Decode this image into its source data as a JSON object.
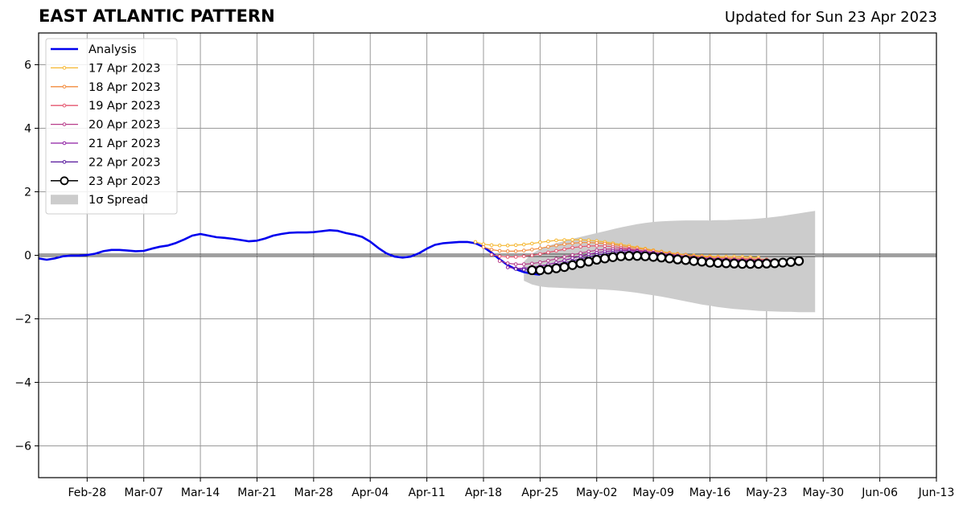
{
  "header": {
    "title": "EAST ATLANTIC PATTERN",
    "updated": "Updated for Sun 23 Apr 2023"
  },
  "chart_data": {
    "type": "line",
    "title": "EAST ATLANTIC PATTERN",
    "subtitle": "Updated for Sun 23 Apr 2023",
    "xlabel": "",
    "ylabel": "",
    "x_start": "2023-02-22",
    "x_end": "2023-06-13",
    "ylim": [
      -7,
      7
    ],
    "xticks": [
      {
        "date": "2023-02-28",
        "label": "Feb-28"
      },
      {
        "date": "2023-03-07",
        "label": "Mar-07"
      },
      {
        "date": "2023-03-14",
        "label": "Mar-14"
      },
      {
        "date": "2023-03-21",
        "label": "Mar-21"
      },
      {
        "date": "2023-03-28",
        "label": "Mar-28"
      },
      {
        "date": "2023-04-04",
        "label": "Apr-04"
      },
      {
        "date": "2023-04-11",
        "label": "Apr-11"
      },
      {
        "date": "2023-04-18",
        "label": "Apr-18"
      },
      {
        "date": "2023-04-25",
        "label": "Apr-25"
      },
      {
        "date": "2023-05-02",
        "label": "May-02"
      },
      {
        "date": "2023-05-09",
        "label": "May-09"
      },
      {
        "date": "2023-05-16",
        "label": "May-16"
      },
      {
        "date": "2023-05-23",
        "label": "May-23"
      },
      {
        "date": "2023-05-30",
        "label": "May-30"
      },
      {
        "date": "2023-06-06",
        "label": "Jun-06"
      },
      {
        "date": "2023-06-13",
        "label": "Jun-13"
      }
    ],
    "yticks": [
      {
        "value": 6,
        "label": "6"
      },
      {
        "value": 4,
        "label": "4"
      },
      {
        "value": 2,
        "label": "2"
      },
      {
        "value": 0,
        "label": "0"
      },
      {
        "value": -2,
        "label": "−2"
      },
      {
        "value": -4,
        "label": "−4"
      },
      {
        "value": -6,
        "label": "−6"
      }
    ],
    "grid": true,
    "legend_position": "top-left",
    "analysis": {
      "name": "Analysis",
      "color": "#0000ee",
      "start": "2023-02-22",
      "values": [
        -0.1,
        -0.14,
        -0.1,
        -0.03,
        -0.01,
        -0.01,
        0.01,
        0.05,
        0.13,
        0.17,
        0.17,
        0.15,
        0.13,
        0.14,
        0.21,
        0.27,
        0.31,
        0.39,
        0.5,
        0.62,
        0.67,
        0.62,
        0.57,
        0.55,
        0.52,
        0.48,
        0.44,
        0.46,
        0.53,
        0.62,
        0.67,
        0.71,
        0.72,
        0.72,
        0.73,
        0.76,
        0.79,
        0.77,
        0.7,
        0.65,
        0.58,
        0.43,
        0.23,
        0.06,
        -0.04,
        -0.07,
        -0.04,
        0.06,
        0.21,
        0.33,
        0.38,
        0.4,
        0.42,
        0.42,
        0.38,
        0.26,
        0.08,
        -0.13,
        -0.31,
        -0.44,
        -0.53,
        -0.58,
        -0.61
      ]
    },
    "forecasts": [
      {
        "name": "17 Apr 2023",
        "color": "#f5b731",
        "start": "2023-04-17",
        "values": [
          0.42,
          0.35,
          0.32,
          0.31,
          0.31,
          0.32,
          0.34,
          0.37,
          0.41,
          0.44,
          0.47,
          0.48,
          0.49,
          0.49,
          0.47,
          0.45,
          0.42,
          0.38,
          0.34,
          0.3,
          0.25,
          0.21,
          0.16,
          0.12,
          0.08,
          0.05,
          0.02,
          0.0,
          -0.02,
          -0.03,
          -0.04,
          -0.04,
          -0.04,
          -0.05,
          -0.06,
          -0.07
        ]
      },
      {
        "name": "18 Apr 2023",
        "color": "#f28b3d",
        "start": "2023-04-18",
        "values": [
          0.26,
          0.18,
          0.14,
          0.13,
          0.13,
          0.15,
          0.18,
          0.22,
          0.27,
          0.31,
          0.35,
          0.38,
          0.4,
          0.4,
          0.39,
          0.37,
          0.34,
          0.3,
          0.26,
          0.22,
          0.18,
          0.14,
          0.1,
          0.06,
          0.03,
          0.01,
          -0.02,
          -0.04,
          -0.06,
          -0.07,
          -0.08,
          -0.09,
          -0.1,
          -0.11,
          -0.12,
          -0.13
        ]
      },
      {
        "name": "19 Apr 2023",
        "color": "#e5566f",
        "start": "2023-04-19",
        "values": [
          0.02,
          -0.03,
          -0.05,
          -0.05,
          -0.03,
          0.0,
          0.04,
          0.09,
          0.14,
          0.19,
          0.24,
          0.27,
          0.29,
          0.3,
          0.29,
          0.27,
          0.24,
          0.21,
          0.17,
          0.13,
          0.09,
          0.05,
          0.02,
          -0.01,
          -0.04,
          -0.06,
          -0.08,
          -0.1,
          -0.11,
          -0.12,
          -0.13,
          -0.13,
          -0.14,
          -0.14,
          -0.15,
          -0.15
        ]
      },
      {
        "name": "20 Apr 2023",
        "color": "#b83d8a",
        "start": "2023-04-20",
        "values": [
          -0.18,
          -0.25,
          -0.28,
          -0.28,
          -0.26,
          -0.22,
          -0.17,
          -0.11,
          -0.05,
          0.01,
          0.07,
          0.12,
          0.16,
          0.19,
          0.2,
          0.19,
          0.18,
          0.15,
          0.12,
          0.08,
          0.05,
          0.02,
          -0.01,
          -0.04,
          -0.06,
          -0.08,
          -0.1,
          -0.11,
          -0.12,
          -0.13,
          -0.14,
          -0.14,
          -0.15,
          -0.15,
          -0.16,
          -0.16
        ]
      },
      {
        "name": "21 Apr 2023",
        "color": "#8e1fa3",
        "start": "2023-04-21",
        "values": [
          -0.38,
          -0.41,
          -0.41,
          -0.38,
          -0.34,
          -0.29,
          -0.23,
          -0.16,
          -0.09,
          -0.03,
          0.03,
          0.08,
          0.12,
          0.14,
          0.15,
          0.15,
          0.13,
          0.11,
          0.08,
          0.05,
          0.02,
          -0.01,
          -0.04,
          -0.07,
          -0.09,
          -0.11,
          -0.13,
          -0.14,
          -0.15,
          -0.16,
          -0.17,
          -0.17,
          -0.18,
          -0.18,
          -0.19,
          -0.19
        ]
      },
      {
        "name": "22 Apr 2023",
        "color": "#55169b",
        "start": "2023-04-22",
        "values": [
          -0.43,
          -0.45,
          -0.44,
          -0.41,
          -0.36,
          -0.3,
          -0.24,
          -0.18,
          -0.11,
          -0.05,
          0.01,
          0.05,
          0.08,
          0.1,
          0.1,
          0.09,
          0.07,
          0.05,
          0.02,
          -0.01,
          -0.04,
          -0.07,
          -0.1,
          -0.13,
          -0.15,
          -0.17,
          -0.19,
          -0.2,
          -0.21,
          -0.22,
          -0.22,
          -0.22,
          -0.22,
          -0.22,
          -0.22,
          -0.22
        ]
      },
      {
        "name": "23 Apr 2023",
        "color": "#000000",
        "start": "2023-04-24",
        "values": [
          -0.47,
          -0.47,
          -0.45,
          -0.41,
          -0.37,
          -0.31,
          -0.25,
          -0.2,
          -0.14,
          -0.1,
          -0.06,
          -0.03,
          -0.02,
          -0.02,
          -0.03,
          -0.05,
          -0.07,
          -0.1,
          -0.13,
          -0.15,
          -0.18,
          -0.2,
          -0.23,
          -0.24,
          -0.25,
          -0.26,
          -0.27,
          -0.27,
          -0.27,
          -0.26,
          -0.25,
          -0.23,
          -0.21,
          -0.18
        ]
      }
    ],
    "spread": {
      "name": "1σ Spread",
      "color": "#cccccc",
      "start": "2023-04-23",
      "upper": [
        -0.2,
        0.05,
        0.2,
        0.3,
        0.38,
        0.45,
        0.52,
        0.58,
        0.64,
        0.7,
        0.76,
        0.82,
        0.88,
        0.93,
        0.98,
        1.02,
        1.05,
        1.07,
        1.08,
        1.09,
        1.1,
        1.1,
        1.1,
        1.1,
        1.11,
        1.11,
        1.12,
        1.13,
        1.14,
        1.16,
        1.18,
        1.21,
        1.24,
        1.28,
        1.32,
        1.36,
        1.4
      ],
      "lower": [
        -0.8,
        -0.92,
        -0.98,
        -1.01,
        -1.02,
        -1.03,
        -1.04,
        -1.05,
        -1.06,
        -1.07,
        -1.08,
        -1.1,
        -1.12,
        -1.15,
        -1.18,
        -1.22,
        -1.26,
        -1.3,
        -1.35,
        -1.4,
        -1.45,
        -1.5,
        -1.55,
        -1.59,
        -1.63,
        -1.66,
        -1.69,
        -1.71,
        -1.73,
        -1.75,
        -1.76,
        -1.77,
        -1.78,
        -1.78,
        -1.79,
        -1.79,
        -1.79
      ]
    }
  }
}
